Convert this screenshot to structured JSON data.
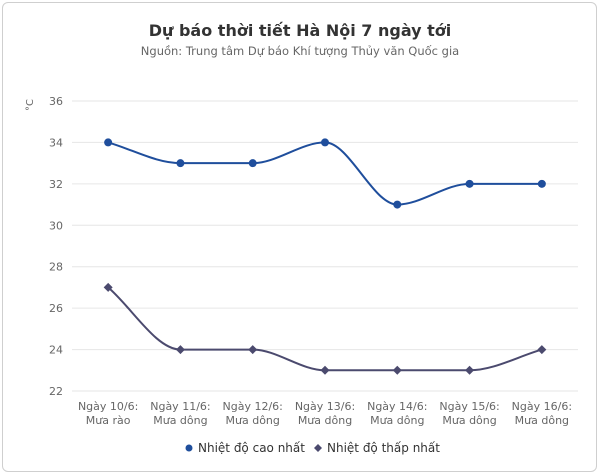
{
  "chart_data": {
    "type": "line",
    "title": "Dự báo thời tiết Hà Nội 7 ngày tới",
    "subtitle": "Nguồn: Trung tâm Dự báo Khí tượng Thủy văn Quốc gia",
    "ylabel": "°C",
    "ylim": [
      22,
      36
    ],
    "yticks": [
      22,
      24,
      26,
      28,
      30,
      32,
      34,
      36
    ],
    "categories": [
      [
        "Ngày 10/6:",
        "Mưa rào"
      ],
      [
        "Ngày 11/6:",
        "Mưa dông"
      ],
      [
        "Ngày 12/6:",
        "Mưa dông"
      ],
      [
        "Ngày 13/6:",
        "Mưa dông"
      ],
      [
        "Ngày 14/6:",
        "Mưa dông"
      ],
      [
        "Ngày 15/6:",
        "Mưa dông"
      ],
      [
        "Ngày 16/6:",
        "Mưa dông"
      ]
    ],
    "series": [
      {
        "name": "Nhiệt độ cao nhất",
        "values": [
          34,
          33,
          33,
          34,
          31,
          32,
          32
        ],
        "color": "#1f4e9c",
        "marker": "circle"
      },
      {
        "name": "Nhiệt độ thấp nhất",
        "values": [
          27,
          24,
          24,
          23,
          23,
          23,
          24
        ],
        "color": "#4b4a6e",
        "marker": "diamond"
      }
    ],
    "grid": true,
    "legend_position": "bottom"
  }
}
